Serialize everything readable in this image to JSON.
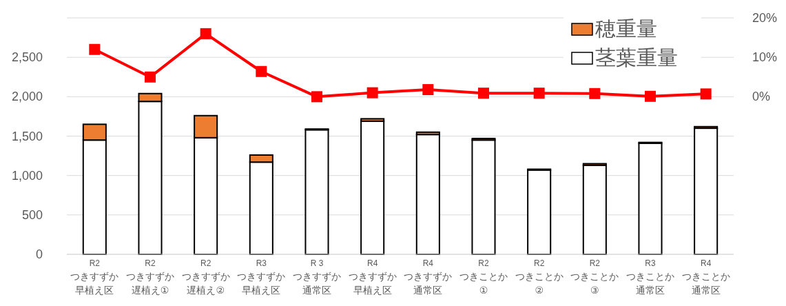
{
  "chart_data": {
    "type": "bar",
    "stacked": true,
    "categories": [
      "R2\nつきすずか早植え区",
      "R2\nつきすずか遅植え①",
      "R2\nつきすずか遅植え②",
      "R3\nつきすずか早植え区",
      "R 3\nつきすずか通常区",
      "R4\nつきすずか早植え区",
      "R4\nつきすずか通常区",
      "R2\nつきことか①",
      "R2\nつきことか②",
      "R2\nつきことか③",
      "R3\nつきことか通常区",
      "R4\nつきことか通常区"
    ],
    "series": [
      {
        "name": "茎葉重量",
        "color": "#ffffff",
        "values": [
          1450,
          1940,
          1480,
          1170,
          1580,
          1690,
          1520,
          1450,
          1070,
          1130,
          1410,
          1600
        ]
      },
      {
        "name": "穂重量",
        "color": "#ed7d31",
        "values": [
          200,
          100,
          280,
          90,
          10,
          30,
          30,
          20,
          10,
          20,
          10,
          20
        ]
      },
      {
        "type": "line",
        "axis": "y2",
        "color": "#ff0000",
        "marker": "square",
        "values": [
          12,
          5,
          16,
          6.4,
          0,
          1,
          1.8,
          0.9,
          0.9,
          0.8,
          0.1,
          0.7
        ]
      }
    ],
    "ylim": [
      0,
      3000
    ],
    "yticks": [
      0,
      500,
      {
        "value": 1000,
        "label": "1,000"
      },
      {
        "value": 1500,
        "label": "1,500"
      },
      {
        "value": 2000,
        "label": "2,000"
      },
      {
        "value": 2500,
        "label": "2,500"
      },
      {
        "value": 3000,
        "label": null
      }
    ],
    "y2lim": [
      -40,
      20
    ],
    "y2ticks": [
      {
        "value": 0,
        "label": "0%"
      },
      {
        "value": 10,
        "label": "10%"
      },
      {
        "value": 20,
        "label": "20%"
      }
    ],
    "grid": "y",
    "legend": "top right"
  }
}
